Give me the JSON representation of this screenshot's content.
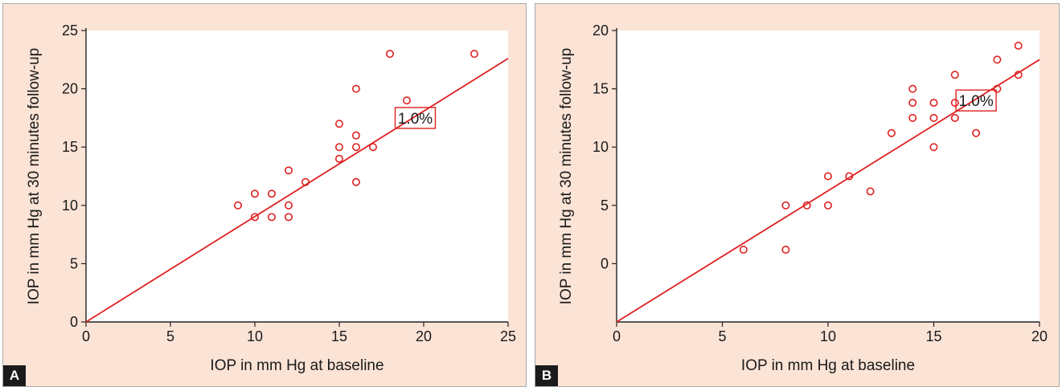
{
  "chart_data": [
    {
      "panel_label": "A",
      "type": "scatter",
      "xlabel": "IOP in mm Hg at baseline",
      "ylabel": "IOP in mm Hg at 30 minutes follow-up",
      "xlim": [
        0,
        25
      ],
      "ylim": [
        0,
        25
      ],
      "xticks": [
        0,
        5,
        10,
        15,
        20,
        25
      ],
      "yticks": [
        0,
        5,
        10,
        15,
        20,
        25
      ],
      "grid": false,
      "points": [
        {
          "x": 9,
          "y": 10
        },
        {
          "x": 10,
          "y": 11
        },
        {
          "x": 10,
          "y": 9
        },
        {
          "x": 11,
          "y": 11
        },
        {
          "x": 11,
          "y": 9
        },
        {
          "x": 12,
          "y": 13
        },
        {
          "x": 12,
          "y": 10
        },
        {
          "x": 12,
          "y": 9
        },
        {
          "x": 13,
          "y": 12
        },
        {
          "x": 15,
          "y": 17
        },
        {
          "x": 15,
          "y": 15
        },
        {
          "x": 15,
          "y": 14
        },
        {
          "x": 16,
          "y": 20
        },
        {
          "x": 16,
          "y": 16
        },
        {
          "x": 16,
          "y": 15
        },
        {
          "x": 16,
          "y": 12
        },
        {
          "x": 17,
          "y": 15
        },
        {
          "x": 18,
          "y": 23
        },
        {
          "x": 19,
          "y": 19
        },
        {
          "x": 23,
          "y": 23
        }
      ],
      "fit_line": {
        "x1": 0,
        "y1": 0,
        "x2": 25,
        "y2": 22.6
      },
      "annotation": {
        "text": "1.0%",
        "x": 19.5,
        "y": 17.5
      },
      "colors": {
        "marker": "#e02020",
        "line": "#e02020",
        "background": "#fbe3d6",
        "plot_area": "#ffffff"
      }
    },
    {
      "panel_label": "B",
      "type": "scatter",
      "xlabel": "IOP in mm Hg at baseline",
      "ylabel": "IOP in mm Hg at 30 minutes follow-up",
      "xlim": [
        0,
        20
      ],
      "ylim": [
        -5,
        20
      ],
      "xticks": [
        0,
        5,
        10,
        15,
        20
      ],
      "yticks": [
        0,
        5,
        10,
        15,
        20
      ],
      "grid": false,
      "points": [
        {
          "x": 6,
          "y": 1.2
        },
        {
          "x": 8,
          "y": 5
        },
        {
          "x": 8,
          "y": 1.2
        },
        {
          "x": 9,
          "y": 5
        },
        {
          "x": 10,
          "y": 7.5
        },
        {
          "x": 10,
          "y": 5
        },
        {
          "x": 11,
          "y": 7.5
        },
        {
          "x": 12,
          "y": 6.2
        },
        {
          "x": 13,
          "y": 11.2
        },
        {
          "x": 14,
          "y": 15
        },
        {
          "x": 14,
          "y": 13.8
        },
        {
          "x": 14,
          "y": 12.5
        },
        {
          "x": 15,
          "y": 13.8
        },
        {
          "x": 15,
          "y": 12.5
        },
        {
          "x": 15,
          "y": 10
        },
        {
          "x": 16,
          "y": 16.2
        },
        {
          "x": 16,
          "y": 13.8
        },
        {
          "x": 16,
          "y": 12.5
        },
        {
          "x": 17,
          "y": 11.2
        },
        {
          "x": 18,
          "y": 17.5
        },
        {
          "x": 18,
          "y": 15
        },
        {
          "x": 19,
          "y": 18.7
        },
        {
          "x": 19,
          "y": 16.2
        }
      ],
      "fit_line": {
        "x1": 0,
        "y1": -5,
        "x2": 20,
        "y2": 17.5
      },
      "annotation": {
        "text": "1.0%",
        "x": 17,
        "y": 14
      },
      "colors": {
        "marker": "#e02020",
        "line": "#e02020",
        "background": "#fbe3d6",
        "plot_area": "#ffffff"
      }
    }
  ]
}
